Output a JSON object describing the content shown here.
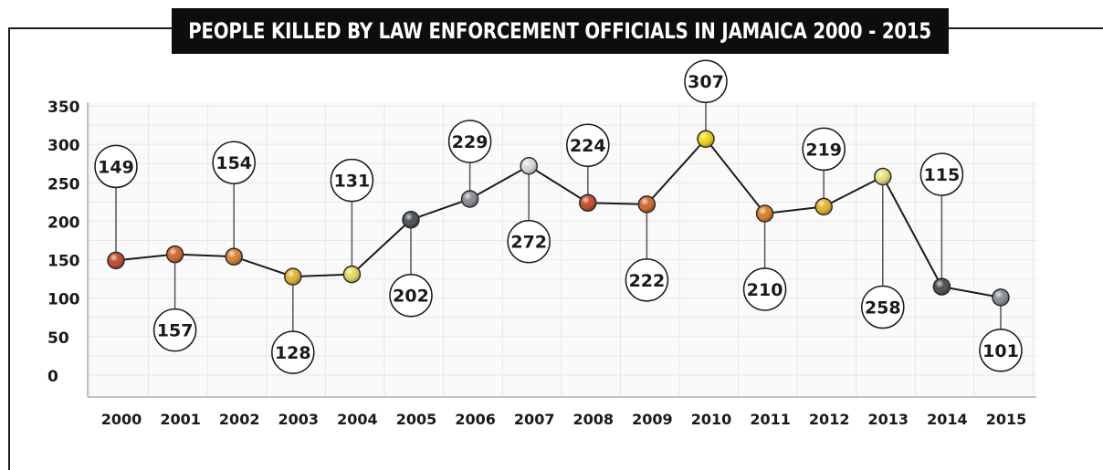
{
  "chart_data": {
    "type": "line",
    "title": "PEOPLE KILLED BY LAW ENFORCEMENT OFFICIALS IN JAMAICA 2000 - 2015",
    "xlabel": "",
    "ylabel": "",
    "categories": [
      "2000",
      "2001",
      "2002",
      "2003",
      "2004",
      "2005",
      "2006",
      "2007",
      "2008",
      "2009",
      "2010",
      "2011",
      "2012",
      "2013",
      "2014",
      "2015"
    ],
    "series": [
      {
        "values": [
          149,
          157,
          154,
          128,
          131,
          202,
          229,
          272,
          224,
          222,
          307,
          210,
          219,
          258,
          115,
          101
        ]
      }
    ],
    "y_axis_range": [
      0,
      350
    ],
    "y_ticks": [
      0,
      50,
      100,
      150,
      200,
      250,
      300,
      350
    ],
    "grid": true,
    "data_labels": "callout-circles",
    "point_colors": [
      "#c44a2a",
      "#d0682d",
      "#d9822f",
      "#e0b22e",
      "#e4d760",
      "#4a5058",
      "#8a8e93",
      "#d9d9d9",
      "#c44a2a",
      "#d0682d",
      "#f2d414",
      "#d97d28",
      "#e2b12e",
      "#e6df7a",
      "#4a5058",
      "#8a8e93"
    ]
  }
}
